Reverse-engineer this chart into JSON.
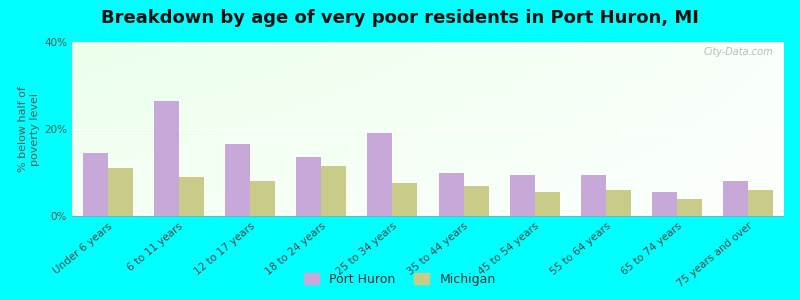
{
  "title": "Breakdown by age of very poor residents in Port Huron, MI",
  "ylabel": "% below half of\npoverty level",
  "categories": [
    "Under 6 years",
    "6 to 11 years",
    "12 to 17 years",
    "18 to 24 years",
    "25 to 34 years",
    "35 to 44 years",
    "45 to 54 years",
    "55 to 64 years",
    "65 to 74 years",
    "75 years and over"
  ],
  "port_huron": [
    14.5,
    26.5,
    16.5,
    13.5,
    19.0,
    10.0,
    9.5,
    9.5,
    5.5,
    8.0
  ],
  "michigan": [
    11.0,
    9.0,
    8.0,
    11.5,
    7.5,
    7.0,
    5.5,
    6.0,
    4.0,
    6.0
  ],
  "port_huron_color": "#c8a8d8",
  "michigan_color": "#c8cc88",
  "ylim": [
    0,
    40
  ],
  "yticks": [
    0,
    20,
    40
  ],
  "ytick_labels": [
    "0%",
    "20%",
    "40%"
  ],
  "bg_color": "#00ffff",
  "title_fontsize": 13,
  "axis_label_fontsize": 8,
  "tick_label_fontsize": 7.5,
  "watermark": "City-Data.com",
  "bar_width": 0.35
}
